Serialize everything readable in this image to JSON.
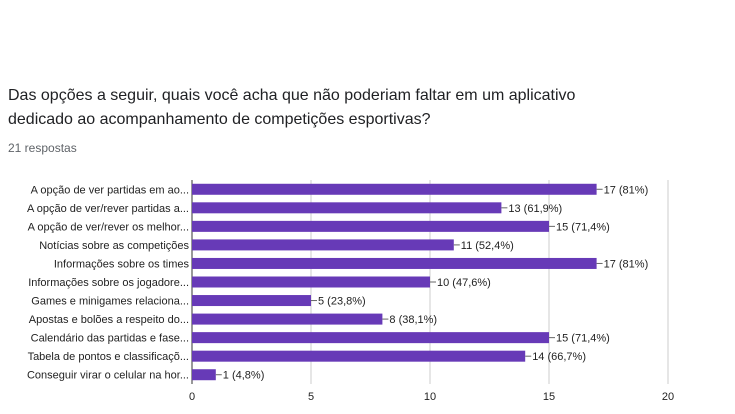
{
  "question": {
    "line1": "Das opções a seguir, quais você acha que não poderiam faltar em um aplicativo",
    "line2": "dedicado ao acompanhamento de competições esportivas?"
  },
  "responses_count": "21 respostas",
  "chart_data": {
    "type": "bar",
    "orientation": "horizontal",
    "bar_color": "#673ab7",
    "grid": true,
    "xlim": [
      0,
      20
    ],
    "x_ticks": [
      0,
      5,
      10,
      15,
      20
    ],
    "categories": [
      "A opção de ver partidas em ao...",
      "A opção de ver/rever partidas a...",
      "A opção de ver/rever os melhor...",
      "Notícias sobre as competições",
      "Informações sobre os times",
      "Informações sobre os jogadore...",
      "Games e minigames relaciona...",
      "Apostas e bolões a respeito do...",
      "Calendário das partidas e fase...",
      "Tabela de pontos e classificaçõ...",
      "Conseguir virar o celular na hor..."
    ],
    "values": [
      17,
      13,
      15,
      11,
      17,
      10,
      5,
      8,
      15,
      14,
      1
    ],
    "data_labels": [
      "17 (81%)",
      "13 (61,9%)",
      "15 (71,4%)",
      "11 (52,4%)",
      "17 (81%)",
      "10 (47,6%)",
      "5 (23,8%)",
      "8 (38,1%)",
      "15 (71,4%)",
      "14 (66,7%)",
      "1 (4,8%)"
    ]
  }
}
